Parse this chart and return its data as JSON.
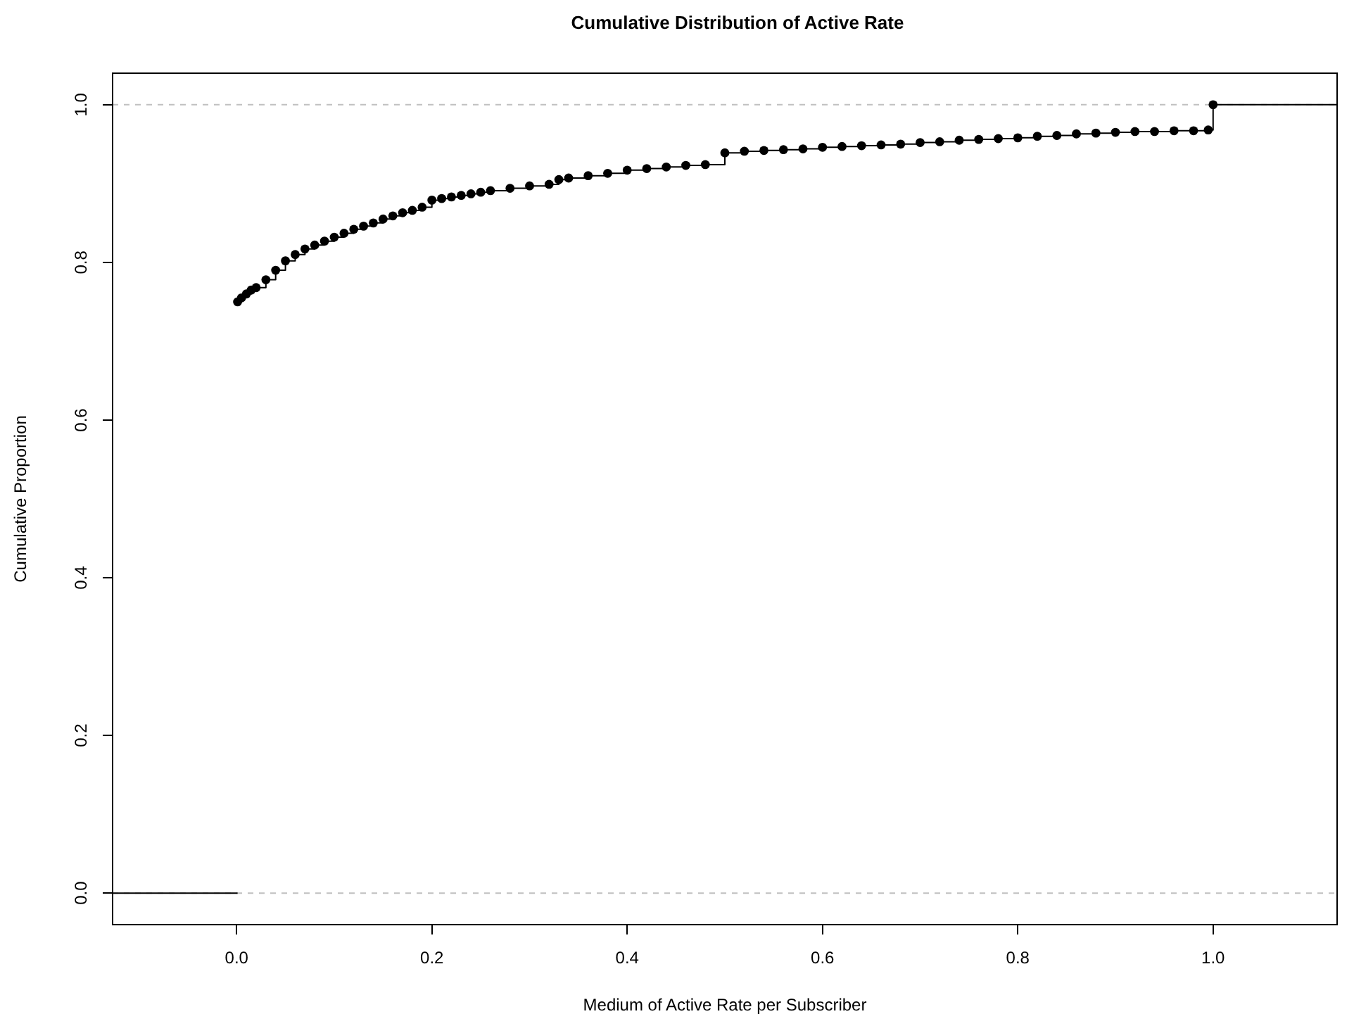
{
  "chart_data": {
    "type": "step",
    "title": "Cumulative Distribution of Active Rate",
    "xlabel": "Medium of Active Rate per Subscriber",
    "ylabel": "Cumulative Proportion",
    "xlim": [
      -0.127,
      1.127
    ],
    "ylim": [
      -0.04,
      1.04
    ],
    "xticks": [
      {
        "value": 0,
        "label": "0.0"
      },
      {
        "value": 0.2,
        "label": "0.2"
      },
      {
        "value": 0.4,
        "label": "0.4"
      },
      {
        "value": 0.6,
        "label": "0.6"
      },
      {
        "value": 0.8,
        "label": "0.8"
      },
      {
        "value": 1,
        "label": "1.0"
      }
    ],
    "yticks": [
      {
        "value": 0,
        "label": "0.0"
      },
      {
        "value": 0.2,
        "label": "0.2"
      },
      {
        "value": 0.4,
        "label": "0.4"
      },
      {
        "value": 0.6,
        "label": "0.6"
      },
      {
        "value": 0.8,
        "label": "0.8"
      },
      {
        "value": 1,
        "label": "1.0"
      }
    ],
    "marker": "circle",
    "legend": false,
    "grid": false,
    "ref_lines": [
      {
        "axis": "y",
        "value": 0,
        "color": "#c0c0c0",
        "line_style": "dashed"
      },
      {
        "axis": "y",
        "value": 1,
        "color": "#c0c0c0",
        "line_style": "dashed"
      }
    ],
    "series": [
      {
        "type": "step",
        "color": "#000000",
        "x": [
          0.001,
          0.005,
          0.01,
          0.015,
          0.02,
          0.03,
          0.04,
          0.05,
          0.06,
          0.07,
          0.08,
          0.09,
          0.1,
          0.11,
          0.12,
          0.13,
          0.14,
          0.15,
          0.16,
          0.17,
          0.18,
          0.19,
          0.2,
          0.21,
          0.22,
          0.23,
          0.24,
          0.25,
          0.26,
          0.28,
          0.3,
          0.32,
          0.33,
          0.34,
          0.36,
          0.38,
          0.4,
          0.42,
          0.44,
          0.46,
          0.48,
          0.5,
          0.52,
          0.54,
          0.56,
          0.58,
          0.6,
          0.62,
          0.64,
          0.66,
          0.68,
          0.7,
          0.72,
          0.74,
          0.76,
          0.78,
          0.8,
          0.82,
          0.84,
          0.86,
          0.88,
          0.9,
          0.92,
          0.94,
          0.96,
          0.98,
          0.995,
          1.0
        ],
        "values": [
          0.75,
          0.755,
          0.76,
          0.765,
          0.768,
          0.778,
          0.79,
          0.802,
          0.81,
          0.817,
          0.822,
          0.827,
          0.832,
          0.837,
          0.842,
          0.846,
          0.85,
          0.855,
          0.859,
          0.863,
          0.866,
          0.87,
          0.879,
          0.881,
          0.883,
          0.885,
          0.887,
          0.889,
          0.891,
          0.894,
          0.897,
          0.899,
          0.905,
          0.907,
          0.91,
          0.913,
          0.917,
          0.919,
          0.921,
          0.923,
          0.924,
          0.939,
          0.941,
          0.942,
          0.943,
          0.944,
          0.946,
          0.947,
          0.948,
          0.949,
          0.95,
          0.952,
          0.953,
          0.955,
          0.956,
          0.957,
          0.958,
          0.96,
          0.961,
          0.963,
          0.964,
          0.965,
          0.966,
          0.966,
          0.967,
          0.967,
          0.968,
          1.0
        ]
      },
      {
        "type": "line",
        "color": "#000000",
        "marker": "none",
        "x": [
          -0.127,
          0.001
        ],
        "values": [
          0,
          0
        ]
      },
      {
        "type": "line",
        "color": "#000000",
        "marker": "none",
        "x": [
          1.0,
          1.127
        ],
        "values": [
          1,
          1
        ]
      }
    ]
  }
}
